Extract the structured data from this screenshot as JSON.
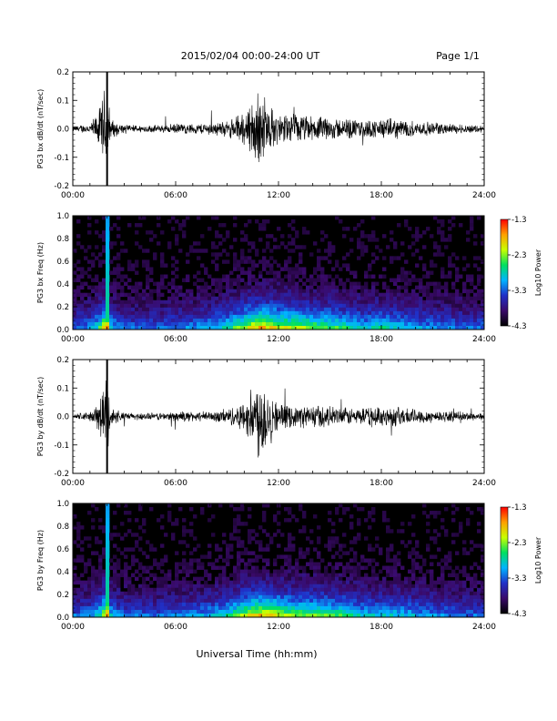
{
  "header": {
    "title": "2015/02/04  00:00-24:00 UT",
    "page": "Page 1/1"
  },
  "footer": {
    "xlabel": "Universal Time (hh:mm)"
  },
  "colorbar": {
    "label": "Log10 Power",
    "ticks": [
      "-1.3",
      "-2.3",
      "-3.3",
      "-4.3"
    ],
    "range": [
      -4.3,
      -1.3
    ],
    "colors": [
      "#000000",
      "#3a0a6a",
      "#2030c8",
      "#00b4ff",
      "#00e060",
      "#c8ff00",
      "#ffa000",
      "#ff0000"
    ]
  },
  "chart_data": [
    {
      "type": "line",
      "title": "",
      "ylabel": "PG3 bx dB/dt (nT/sec)",
      "xlabel": "",
      "xlim": [
        0,
        24
      ],
      "ylim": [
        -0.2,
        0.2
      ],
      "xticks": [
        "00:00",
        "06:00",
        "12:00",
        "18:00",
        "24:00"
      ],
      "yticks": [
        "0.2",
        "0.1",
        "0.0",
        "-0.1",
        "-0.2"
      ],
      "envelope": {
        "x": [
          0,
          1,
          1.5,
          2.0,
          2.2,
          3,
          4,
          5,
          6,
          7,
          8,
          9,
          10,
          10.5,
          11,
          11.5,
          12,
          13,
          14,
          15,
          16,
          17,
          18,
          19,
          20,
          21,
          22,
          23,
          24
        ],
        "amp": [
          0.012,
          0.02,
          0.07,
          0.2,
          0.04,
          0.015,
          0.015,
          0.015,
          0.02,
          0.02,
          0.025,
          0.03,
          0.07,
          0.12,
          0.16,
          0.09,
          0.06,
          0.06,
          0.05,
          0.045,
          0.04,
          0.035,
          0.04,
          0.04,
          0.03,
          0.025,
          0.02,
          0.018,
          0.015
        ]
      },
      "color": "#000000"
    },
    {
      "type": "heatmap",
      "title": "",
      "ylabel": "PG3 bx Freq (Hz)",
      "xlim": [
        0,
        24
      ],
      "ylim": [
        0.0,
        1.0
      ],
      "xticks": [
        "00:00",
        "06:00",
        "12:00",
        "18:00",
        "24:00"
      ],
      "yticks": [
        "1.0",
        "0.8",
        "0.6",
        "0.4",
        "0.2",
        "0.0"
      ],
      "zlabel": "Log10 Power",
      "zlim": [
        -4.3,
        -1.3
      ],
      "activity": {
        "x": [
          0,
          1,
          1.5,
          2.0,
          2.2,
          3,
          4,
          5,
          6,
          7,
          8,
          9,
          10,
          10.5,
          11,
          11.5,
          12,
          13,
          14,
          15,
          16,
          17,
          18,
          19,
          20,
          21,
          22,
          23,
          24
        ],
        "level": [
          0.35,
          0.4,
          0.55,
          1.0,
          0.5,
          0.35,
          0.35,
          0.35,
          0.38,
          0.4,
          0.45,
          0.55,
          0.75,
          0.85,
          0.9,
          0.85,
          0.8,
          0.75,
          0.7,
          0.65,
          0.6,
          0.5,
          0.55,
          0.5,
          0.45,
          0.4,
          0.38,
          0.35,
          0.35
        ]
      }
    },
    {
      "type": "line",
      "title": "",
      "ylabel": "PG3 by dB/dt (nT/sec)",
      "xlabel": "",
      "xlim": [
        0,
        24
      ],
      "ylim": [
        -0.2,
        0.2
      ],
      "xticks": [
        "00:00",
        "06:00",
        "12:00",
        "18:00",
        "24:00"
      ],
      "yticks": [
        "0.2",
        "0.1",
        "0.0",
        "-0.1",
        "-0.2"
      ],
      "envelope": {
        "x": [
          0,
          1,
          1.5,
          2.0,
          2.2,
          3,
          4,
          5,
          6,
          7,
          8,
          9,
          10,
          10.5,
          11,
          11.5,
          12,
          13,
          14,
          15,
          16,
          17,
          18,
          19,
          20,
          21,
          22,
          23,
          24
        ],
        "amp": [
          0.012,
          0.02,
          0.05,
          0.2,
          0.04,
          0.015,
          0.015,
          0.015,
          0.02,
          0.02,
          0.02,
          0.03,
          0.06,
          0.12,
          0.19,
          0.1,
          0.05,
          0.04,
          0.05,
          0.04,
          0.035,
          0.035,
          0.04,
          0.04,
          0.03,
          0.025,
          0.02,
          0.018,
          0.015
        ]
      },
      "color": "#000000"
    },
    {
      "type": "heatmap",
      "title": "",
      "ylabel": "PG3 by Freq (Hz)",
      "xlim": [
        0,
        24
      ],
      "ylim": [
        0.0,
        1.0
      ],
      "xticks": [
        "00:00",
        "06:00",
        "12:00",
        "18:00",
        "24:00"
      ],
      "yticks": [
        "1.0",
        "0.8",
        "0.6",
        "0.4",
        "0.2",
        "0.0"
      ],
      "zlabel": "Log10 Power",
      "zlim": [
        -4.3,
        -1.3
      ],
      "activity": {
        "x": [
          0,
          1,
          1.5,
          2.0,
          2.2,
          3,
          4,
          5,
          6,
          7,
          8,
          9,
          10,
          10.5,
          11,
          11.5,
          12,
          13,
          14,
          15,
          16,
          17,
          18,
          19,
          20,
          21,
          22,
          23,
          24
        ],
        "level": [
          0.35,
          0.4,
          0.5,
          1.0,
          0.5,
          0.35,
          0.35,
          0.35,
          0.38,
          0.4,
          0.45,
          0.55,
          0.75,
          0.85,
          0.9,
          0.85,
          0.8,
          0.7,
          0.7,
          0.65,
          0.6,
          0.5,
          0.5,
          0.5,
          0.45,
          0.4,
          0.38,
          0.35,
          0.35
        ]
      }
    }
  ]
}
